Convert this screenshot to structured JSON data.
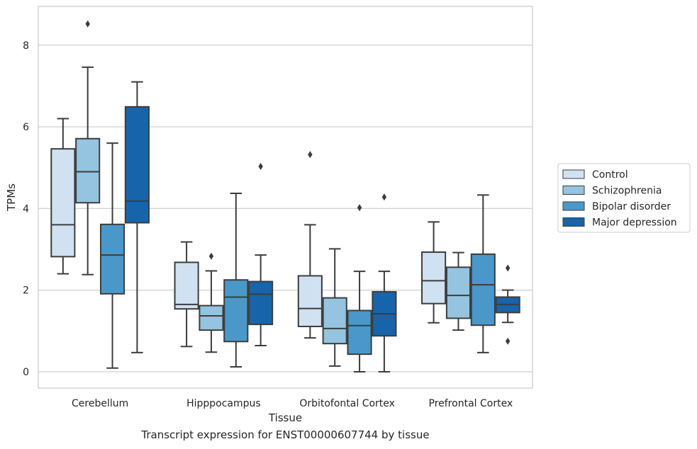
{
  "chart_data": {
    "type": "box",
    "xlabel": "Tissue",
    "ylabel": "TPMs",
    "caption": "Transcript expression for ENST00000607744 by tissue",
    "ylim": [
      -0.4,
      8.95
    ],
    "yticks": [
      0,
      2,
      4,
      6,
      8
    ],
    "grid": true,
    "legend_position": "right",
    "categories": [
      "Cerebellum",
      "Hipppocampus",
      "Orbitofontal Cortex",
      "Prefrontal Cortex"
    ],
    "series": [
      {
        "name": "Control",
        "color": "#d0e1f2",
        "boxes": [
          {
            "whislo": 2.4,
            "q1": 2.82,
            "med": 3.6,
            "q3": 5.46,
            "whishi": 6.2,
            "fliers": []
          },
          {
            "whislo": 0.62,
            "q1": 1.54,
            "med": 1.65,
            "q3": 2.68,
            "whishi": 3.18,
            "fliers": []
          },
          {
            "whislo": 0.83,
            "q1": 1.11,
            "med": 1.55,
            "q3": 2.35,
            "whishi": 3.6,
            "fliers": [
              5.32
            ]
          },
          {
            "whislo": 1.2,
            "q1": 1.67,
            "med": 2.23,
            "q3": 2.93,
            "whishi": 3.67,
            "fliers": []
          }
        ]
      },
      {
        "name": "Schizophrenia",
        "color": "#94c4df",
        "boxes": [
          {
            "whislo": 2.38,
            "q1": 4.14,
            "med": 4.9,
            "q3": 5.71,
            "whishi": 7.46,
            "fliers": [
              8.52
            ]
          },
          {
            "whislo": 0.48,
            "q1": 1.02,
            "med": 1.37,
            "q3": 1.62,
            "whishi": 2.47,
            "fliers": [
              2.83
            ]
          },
          {
            "whislo": 0.14,
            "q1": 0.69,
            "med": 1.06,
            "q3": 1.81,
            "whishi": 3.01,
            "fliers": []
          },
          {
            "whislo": 1.02,
            "q1": 1.31,
            "med": 1.87,
            "q3": 2.56,
            "whishi": 2.92,
            "fliers": []
          }
        ]
      },
      {
        "name": "Bipolar disorder",
        "color": "#4a98c9",
        "boxes": [
          {
            "whislo": 0.09,
            "q1": 1.91,
            "med": 2.86,
            "q3": 3.61,
            "whishi": 5.6,
            "fliers": []
          },
          {
            "whislo": 0.12,
            "q1": 0.74,
            "med": 1.83,
            "q3": 2.25,
            "whishi": 4.37,
            "fliers": []
          },
          {
            "whislo": 0.0,
            "q1": 0.43,
            "med": 1.13,
            "q3": 1.5,
            "whishi": 2.46,
            "fliers": [
              4.02
            ]
          },
          {
            "whislo": 0.47,
            "q1": 1.14,
            "med": 2.13,
            "q3": 2.88,
            "whishi": 4.33,
            "fliers": []
          }
        ]
      },
      {
        "name": "Major depression",
        "color": "#1764ab",
        "boxes": [
          {
            "whislo": 0.47,
            "q1": 3.65,
            "med": 4.18,
            "q3": 6.49,
            "whishi": 7.1,
            "fliers": []
          },
          {
            "whislo": 0.64,
            "q1": 1.16,
            "med": 1.9,
            "q3": 2.21,
            "whishi": 2.86,
            "fliers": [
              5.03
            ]
          },
          {
            "whislo": 0.0,
            "q1": 0.88,
            "med": 1.42,
            "q3": 1.96,
            "whishi": 2.46,
            "fliers": [
              4.28
            ]
          },
          {
            "whislo": 1.21,
            "q1": 1.45,
            "med": 1.65,
            "q3": 1.83,
            "whishi": 2.0,
            "fliers": [
              2.54,
              0.75
            ]
          }
        ]
      }
    ]
  }
}
